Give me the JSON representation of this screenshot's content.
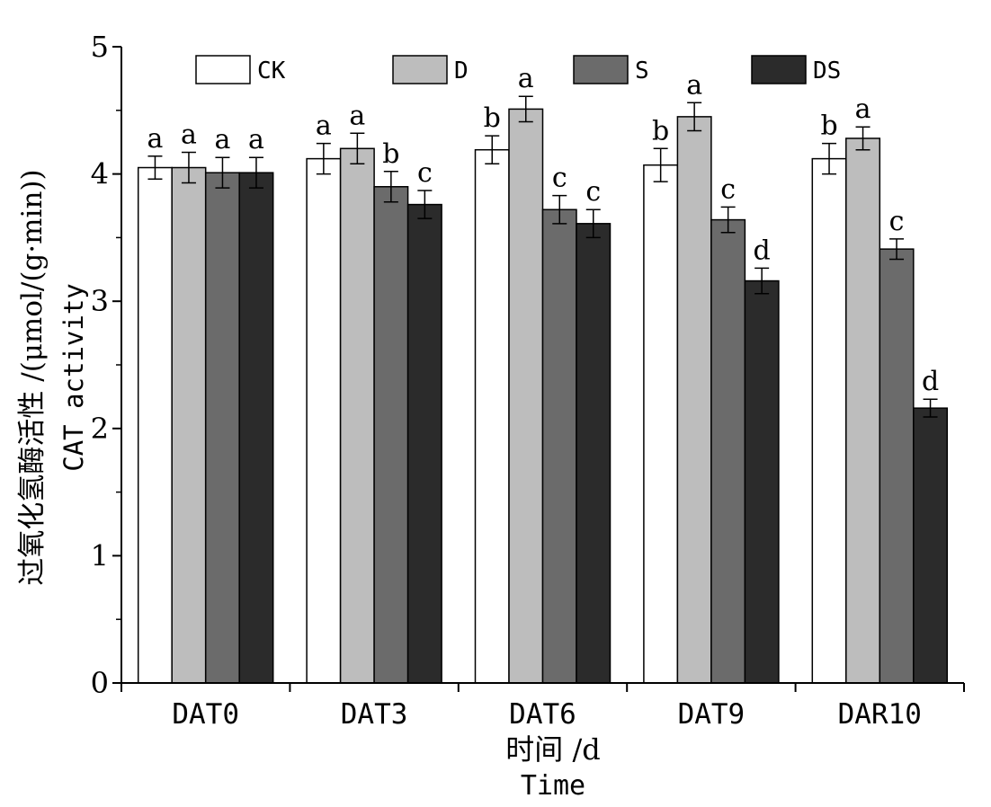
{
  "chart_data": {
    "type": "bar",
    "xlabel": "时间 /d",
    "xlabel_en": "Time",
    "ylabel": "过氧化氢酶活性 /(μmol/(g·min))",
    "ylabel_en": "CAT activity",
    "ylim": [
      0,
      5
    ],
    "yticks": [
      "0",
      "1",
      "2",
      "3",
      "4",
      "5"
    ],
    "categories": [
      "DAT0",
      "DAT3",
      "DAT6",
      "DAT9",
      "DAR10"
    ],
    "legend_position": "top",
    "grid": false,
    "series": [
      {
        "name": "CK",
        "color": "#ffffff",
        "values": [
          4.05,
          4.12,
          4.19,
          4.07,
          4.12
        ],
        "errors": [
          0.09,
          0.12,
          0.11,
          0.13,
          0.12
        ],
        "letters": [
          "a",
          "a",
          "b",
          "b",
          "b"
        ]
      },
      {
        "name": "D",
        "color": "#bdbdbd",
        "values": [
          4.05,
          4.2,
          4.51,
          4.45,
          4.28
        ],
        "errors": [
          0.12,
          0.12,
          0.1,
          0.11,
          0.09
        ],
        "letters": [
          "a",
          "a",
          "a",
          "a",
          "a"
        ]
      },
      {
        "name": "S",
        "color": "#6b6b6b",
        "values": [
          4.01,
          3.9,
          3.72,
          3.64,
          3.41
        ],
        "errors": [
          0.12,
          0.12,
          0.11,
          0.1,
          0.08
        ],
        "letters": [
          "a",
          "b",
          "c",
          "c",
          "c"
        ]
      },
      {
        "name": "DS",
        "color": "#2b2b2b",
        "values": [
          4.01,
          3.76,
          3.61,
          3.16,
          2.16
        ],
        "errors": [
          0.12,
          0.11,
          0.11,
          0.1,
          0.07
        ],
        "letters": [
          "a",
          "c",
          "c",
          "d",
          "d"
        ]
      }
    ]
  }
}
